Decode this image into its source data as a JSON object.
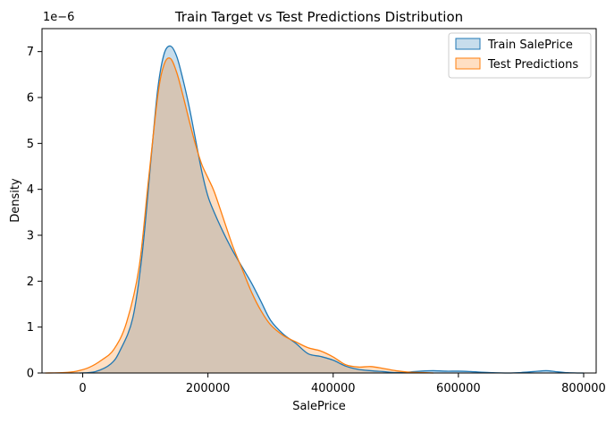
{
  "chart_data": {
    "type": "area",
    "title": "Train Target vs Test Predictions Distribution",
    "xlabel": "SalePrice",
    "ylabel": "Density",
    "y_offset_text": "1e−6",
    "xlim": [
      -65000,
      820000
    ],
    "ylim": [
      0,
      7.5
    ],
    "xticks": [
      0,
      200000,
      400000,
      600000,
      800000
    ],
    "xtick_labels": [
      "0",
      "200000",
      "400000",
      "600000",
      "800000"
    ],
    "yticks": [
      0,
      1,
      2,
      3,
      4,
      5,
      6,
      7
    ],
    "ytick_labels": [
      "0",
      "1",
      "2",
      "3",
      "4",
      "5",
      "6",
      "7"
    ],
    "grid": false,
    "legend_position": "top-right",
    "series": [
      {
        "name": "Train SalePrice",
        "color": "#1f77b4",
        "fill_opacity": 0.25,
        "x": [
          -5000,
          20000,
          45000,
          60000,
          80000,
          95000,
          110000,
          120000,
          130000,
          140000,
          150000,
          160000,
          170000,
          180000,
          190000,
          200000,
          210000,
          225000,
          240000,
          255000,
          270000,
          285000,
          300000,
          320000,
          340000,
          360000,
          380000,
          400000,
          420000,
          440000,
          460000,
          480000,
          500000,
          520000,
          540000,
          560000,
          580000,
          600000,
          620000,
          650000,
          680000,
          700000,
          720000,
          740000,
          755000,
          770000,
          790000,
          800000
        ],
        "y": [
          0,
          0.03,
          0.2,
          0.5,
          1.2,
          2.6,
          4.8,
          6.2,
          6.95,
          7.12,
          6.9,
          6.4,
          5.8,
          5.1,
          4.4,
          3.85,
          3.5,
          3.05,
          2.65,
          2.3,
          1.95,
          1.55,
          1.15,
          0.85,
          0.65,
          0.42,
          0.36,
          0.28,
          0.15,
          0.08,
          0.05,
          0.03,
          0.01,
          0.02,
          0.04,
          0.05,
          0.04,
          0.04,
          0.03,
          0.01,
          0,
          0.01,
          0.03,
          0.05,
          0.03,
          0.01,
          0,
          0
        ]
      },
      {
        "name": "Test Predictions",
        "color": "#ff7f0e",
        "fill_opacity": 0.25,
        "x": [
          -60000,
          -30000,
          -10000,
          10000,
          30000,
          50000,
          70000,
          90000,
          105000,
          120000,
          130000,
          140000,
          150000,
          160000,
          170000,
          180000,
          190000,
          200000,
          210000,
          225000,
          240000,
          255000,
          270000,
          285000,
          300000,
          320000,
          340000,
          360000,
          380000,
          400000,
          420000,
          440000,
          460000,
          480000,
          500000,
          520000,
          540000,
          560000
        ],
        "y": [
          0,
          0.01,
          0.04,
          0.12,
          0.28,
          0.52,
          1.1,
          2.3,
          4.2,
          6.05,
          6.72,
          6.85,
          6.55,
          6.05,
          5.5,
          4.98,
          4.55,
          4.25,
          3.95,
          3.35,
          2.75,
          2.25,
          1.75,
          1.35,
          1.05,
          0.82,
          0.68,
          0.55,
          0.48,
          0.35,
          0.18,
          0.13,
          0.14,
          0.1,
          0.05,
          0.02,
          0.01,
          0
        ]
      }
    ]
  }
}
